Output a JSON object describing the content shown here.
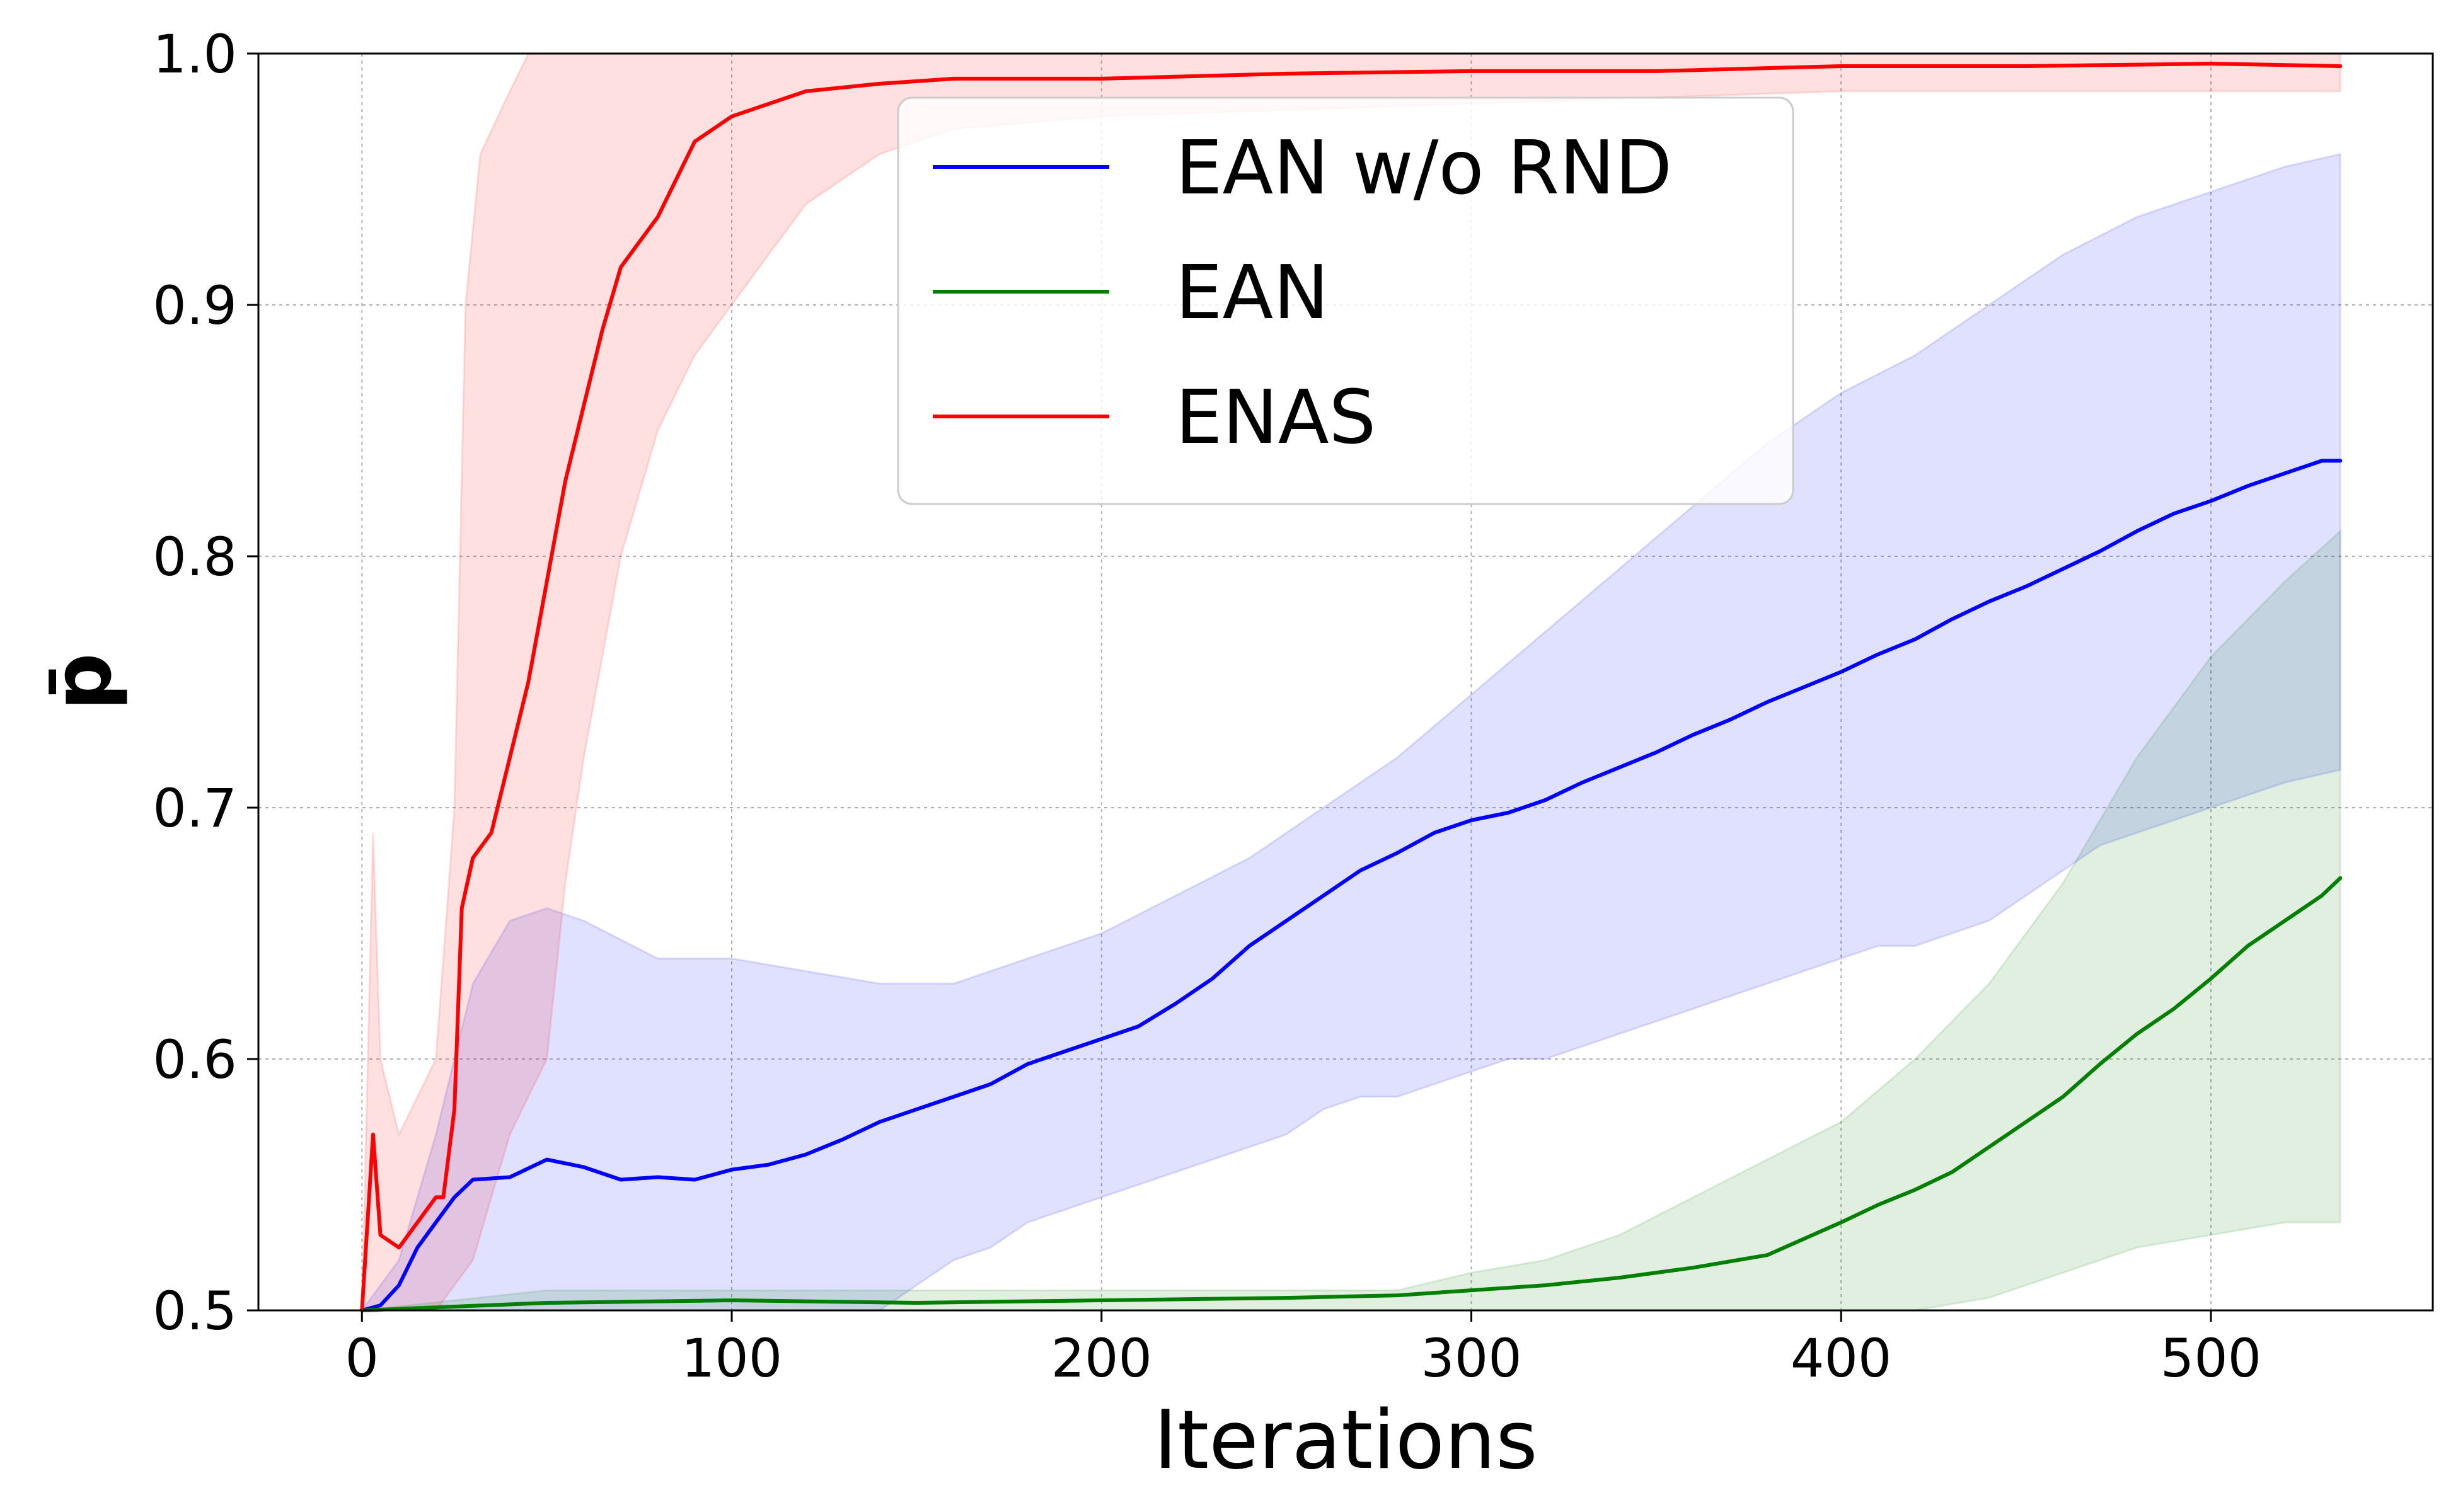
{
  "chart_data": {
    "type": "line",
    "title": "",
    "xlabel": "Iterations",
    "ylabel": "p̄",
    "xlim": [
      -28,
      560
    ],
    "ylim": [
      0.5,
      1.0
    ],
    "xticks": [
      0,
      100,
      200,
      300,
      400,
      500
    ],
    "yticks": [
      0.5,
      0.6,
      0.7,
      0.8,
      0.9,
      1.0
    ],
    "xtick_labels": [
      "0",
      "100",
      "200",
      "300",
      "400",
      "500"
    ],
    "ytick_labels": [
      "0.5",
      "0.6",
      "0.7",
      "0.8",
      "0.9",
      "1.0"
    ],
    "grid": true,
    "legend_position": "top-center",
    "series": [
      {
        "name": "EAN w/o RND",
        "color": "#0000ff",
        "points": [
          [
            0,
            0.5
          ],
          [
            5,
            0.502
          ],
          [
            10,
            0.51
          ],
          [
            15,
            0.525
          ],
          [
            20,
            0.535
          ],
          [
            25,
            0.545
          ],
          [
            30,
            0.552
          ],
          [
            40,
            0.553
          ],
          [
            50,
            0.56
          ],
          [
            60,
            0.557
          ],
          [
            70,
            0.552
          ],
          [
            80,
            0.553
          ],
          [
            90,
            0.552
          ],
          [
            100,
            0.556
          ],
          [
            110,
            0.558
          ],
          [
            120,
            0.562
          ],
          [
            130,
            0.568
          ],
          [
            140,
            0.575
          ],
          [
            150,
            0.58
          ],
          [
            160,
            0.585
          ],
          [
            170,
            0.59
          ],
          [
            180,
            0.598
          ],
          [
            190,
            0.603
          ],
          [
            200,
            0.608
          ],
          [
            210,
            0.613
          ],
          [
            220,
            0.622
          ],
          [
            230,
            0.632
          ],
          [
            240,
            0.645
          ],
          [
            250,
            0.655
          ],
          [
            260,
            0.665
          ],
          [
            270,
            0.675
          ],
          [
            280,
            0.682
          ],
          [
            290,
            0.69
          ],
          [
            300,
            0.695
          ],
          [
            310,
            0.698
          ],
          [
            320,
            0.703
          ],
          [
            330,
            0.71
          ],
          [
            340,
            0.716
          ],
          [
            350,
            0.722
          ],
          [
            360,
            0.729
          ],
          [
            370,
            0.735
          ],
          [
            380,
            0.742
          ],
          [
            390,
            0.748
          ],
          [
            400,
            0.754
          ],
          [
            410,
            0.761
          ],
          [
            420,
            0.767
          ],
          [
            430,
            0.775
          ],
          [
            440,
            0.782
          ],
          [
            450,
            0.788
          ],
          [
            460,
            0.795
          ],
          [
            470,
            0.802
          ],
          [
            480,
            0.81
          ],
          [
            490,
            0.817
          ],
          [
            500,
            0.822
          ],
          [
            510,
            0.828
          ],
          [
            520,
            0.833
          ],
          [
            530,
            0.838
          ],
          [
            535,
            0.838
          ]
        ],
        "lower": [
          [
            0,
            0.5
          ],
          [
            10,
            0.5
          ],
          [
            20,
            0.5
          ],
          [
            30,
            0.5
          ],
          [
            40,
            0.5
          ],
          [
            50,
            0.5
          ],
          [
            100,
            0.5
          ],
          [
            140,
            0.5
          ],
          [
            150,
            0.51
          ],
          [
            160,
            0.52
          ],
          [
            170,
            0.525
          ],
          [
            180,
            0.535
          ],
          [
            190,
            0.54
          ],
          [
            200,
            0.545
          ],
          [
            210,
            0.55
          ],
          [
            220,
            0.555
          ],
          [
            230,
            0.56
          ],
          [
            240,
            0.565
          ],
          [
            250,
            0.57
          ],
          [
            260,
            0.58
          ],
          [
            270,
            0.585
          ],
          [
            280,
            0.585
          ],
          [
            290,
            0.59
          ],
          [
            300,
            0.595
          ],
          [
            310,
            0.6
          ],
          [
            320,
            0.6
          ],
          [
            330,
            0.605
          ],
          [
            340,
            0.61
          ],
          [
            350,
            0.615
          ],
          [
            360,
            0.62
          ],
          [
            370,
            0.625
          ],
          [
            380,
            0.63
          ],
          [
            390,
            0.635
          ],
          [
            400,
            0.64
          ],
          [
            410,
            0.645
          ],
          [
            420,
            0.645
          ],
          [
            430,
            0.65
          ],
          [
            440,
            0.655
          ],
          [
            450,
            0.665
          ],
          [
            460,
            0.675
          ],
          [
            470,
            0.685
          ],
          [
            480,
            0.69
          ],
          [
            490,
            0.695
          ],
          [
            500,
            0.7
          ],
          [
            510,
            0.705
          ],
          [
            520,
            0.71
          ],
          [
            535,
            0.715
          ]
        ],
        "upper": [
          [
            0,
            0.5
          ],
          [
            10,
            0.52
          ],
          [
            20,
            0.57
          ],
          [
            30,
            0.63
          ],
          [
            40,
            0.655
          ],
          [
            50,
            0.66
          ],
          [
            60,
            0.655
          ],
          [
            80,
            0.64
          ],
          [
            100,
            0.64
          ],
          [
            120,
            0.635
          ],
          [
            140,
            0.63
          ],
          [
            160,
            0.63
          ],
          [
            180,
            0.64
          ],
          [
            200,
            0.65
          ],
          [
            220,
            0.665
          ],
          [
            240,
            0.68
          ],
          [
            260,
            0.7
          ],
          [
            280,
            0.72
          ],
          [
            300,
            0.745
          ],
          [
            320,
            0.77
          ],
          [
            340,
            0.795
          ],
          [
            360,
            0.82
          ],
          [
            380,
            0.845
          ],
          [
            400,
            0.865
          ],
          [
            420,
            0.88
          ],
          [
            440,
            0.9
          ],
          [
            460,
            0.92
          ],
          [
            480,
            0.935
          ],
          [
            500,
            0.945
          ],
          [
            520,
            0.955
          ],
          [
            535,
            0.96
          ]
        ]
      },
      {
        "name": "EAN",
        "color": "#007f00",
        "points": [
          [
            0,
            0.5
          ],
          [
            50,
            0.503
          ],
          [
            100,
            0.504
          ],
          [
            150,
            0.503
          ],
          [
            200,
            0.504
          ],
          [
            250,
            0.505
          ],
          [
            280,
            0.506
          ],
          [
            300,
            0.508
          ],
          [
            320,
            0.51
          ],
          [
            340,
            0.513
          ],
          [
            360,
            0.517
          ],
          [
            380,
            0.522
          ],
          [
            400,
            0.535
          ],
          [
            410,
            0.542
          ],
          [
            420,
            0.548
          ],
          [
            430,
            0.555
          ],
          [
            440,
            0.565
          ],
          [
            450,
            0.575
          ],
          [
            460,
            0.585
          ],
          [
            470,
            0.598
          ],
          [
            480,
            0.61
          ],
          [
            490,
            0.62
          ],
          [
            500,
            0.632
          ],
          [
            510,
            0.645
          ],
          [
            520,
            0.655
          ],
          [
            530,
            0.665
          ],
          [
            535,
            0.672
          ]
        ],
        "lower": [
          [
            0,
            0.5
          ],
          [
            340,
            0.5
          ],
          [
            380,
            0.5
          ],
          [
            400,
            0.5
          ],
          [
            420,
            0.5
          ],
          [
            440,
            0.505
          ],
          [
            460,
            0.515
          ],
          [
            480,
            0.525
          ],
          [
            500,
            0.53
          ],
          [
            520,
            0.535
          ],
          [
            535,
            0.535
          ]
        ],
        "upper": [
          [
            0,
            0.5
          ],
          [
            50,
            0.508
          ],
          [
            100,
            0.508
          ],
          [
            200,
            0.508
          ],
          [
            280,
            0.508
          ],
          [
            300,
            0.515
          ],
          [
            320,
            0.52
          ],
          [
            340,
            0.53
          ],
          [
            360,
            0.545
          ],
          [
            380,
            0.56
          ],
          [
            400,
            0.575
          ],
          [
            420,
            0.6
          ],
          [
            440,
            0.63
          ],
          [
            460,
            0.67
          ],
          [
            480,
            0.72
          ],
          [
            500,
            0.76
          ],
          [
            520,
            0.79
          ],
          [
            535,
            0.81
          ]
        ]
      },
      {
        "name": "ENAS",
        "color": "#ff0000",
        "points": [
          [
            0,
            0.5
          ],
          [
            3,
            0.57
          ],
          [
            5,
            0.53
          ],
          [
            10,
            0.525
          ],
          [
            15,
            0.535
          ],
          [
            20,
            0.545
          ],
          [
            22,
            0.545
          ],
          [
            25,
            0.58
          ],
          [
            27,
            0.66
          ],
          [
            30,
            0.68
          ],
          [
            35,
            0.69
          ],
          [
            40,
            0.72
          ],
          [
            45,
            0.75
          ],
          [
            50,
            0.79
          ],
          [
            55,
            0.83
          ],
          [
            60,
            0.86
          ],
          [
            65,
            0.89
          ],
          [
            70,
            0.915
          ],
          [
            75,
            0.925
          ],
          [
            80,
            0.935
          ],
          [
            85,
            0.95
          ],
          [
            90,
            0.965
          ],
          [
            95,
            0.97
          ],
          [
            100,
            0.975
          ],
          [
            110,
            0.98
          ],
          [
            120,
            0.985
          ],
          [
            140,
            0.988
          ],
          [
            160,
            0.99
          ],
          [
            200,
            0.99
          ],
          [
            250,
            0.992
          ],
          [
            300,
            0.993
          ],
          [
            350,
            0.993
          ],
          [
            400,
            0.995
          ],
          [
            450,
            0.995
          ],
          [
            500,
            0.996
          ],
          [
            535,
            0.995
          ]
        ],
        "lower": [
          [
            0,
            0.5
          ],
          [
            5,
            0.5
          ],
          [
            10,
            0.5
          ],
          [
            20,
            0.5
          ],
          [
            30,
            0.52
          ],
          [
            40,
            0.57
          ],
          [
            50,
            0.6
          ],
          [
            55,
            0.67
          ],
          [
            60,
            0.72
          ],
          [
            65,
            0.76
          ],
          [
            70,
            0.8
          ],
          [
            80,
            0.85
          ],
          [
            90,
            0.88
          ],
          [
            100,
            0.9
          ],
          [
            110,
            0.92
          ],
          [
            120,
            0.94
          ],
          [
            140,
            0.96
          ],
          [
            160,
            0.97
          ],
          [
            200,
            0.975
          ],
          [
            300,
            0.98
          ],
          [
            400,
            0.985
          ],
          [
            535,
            0.985
          ]
        ],
        "upper": [
          [
            0,
            0.5
          ],
          [
            3,
            0.69
          ],
          [
            5,
            0.6
          ],
          [
            10,
            0.57
          ],
          [
            20,
            0.6
          ],
          [
            25,
            0.7
          ],
          [
            28,
            0.9
          ],
          [
            32,
            0.96
          ],
          [
            40,
            0.985
          ],
          [
            45,
            1.0
          ],
          [
            535,
            1.0
          ]
        ]
      }
    ]
  }
}
